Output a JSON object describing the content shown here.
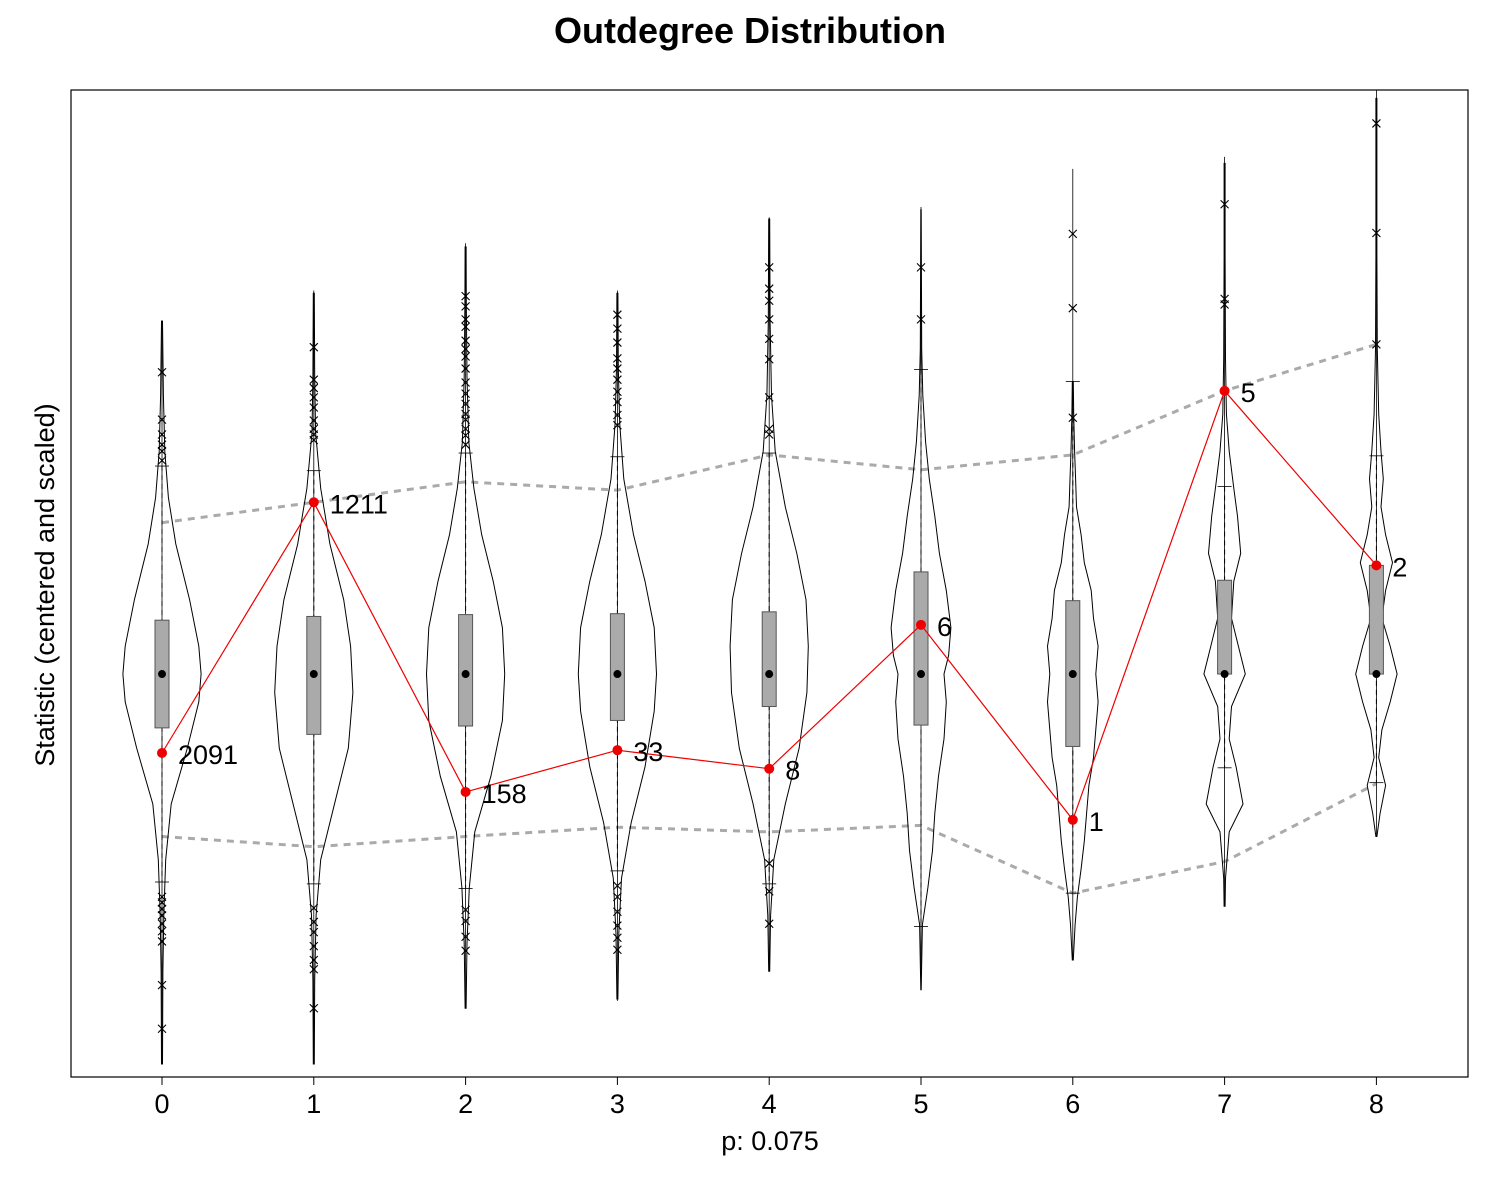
{
  "chart_data": {
    "type": "violin",
    "title": "Outdegree Distribution",
    "xlabel": "p: 0.075",
    "ylabel": "Statistic (centered and scaled)",
    "categories": [
      "0",
      "1",
      "2",
      "3",
      "4",
      "5",
      "6",
      "7",
      "8"
    ],
    "ylim": [
      -4.34,
      6.29
    ],
    "grid": false,
    "legend": "none",
    "colors": {
      "observed": "#ee0000",
      "band": "#aaaaaa",
      "box_fill": "#aaaaaa",
      "outline": "#000000"
    },
    "observed": {
      "values": [
        -0.85,
        1.85,
        -1.27,
        -0.82,
        -1.02,
        0.53,
        -1.57,
        3.05,
        1.17
      ],
      "labels": [
        "2091",
        "1211",
        "158",
        "33",
        "8",
        "6",
        "1",
        "5",
        "2"
      ]
    },
    "band_upper": [
      1.63,
      1.85,
      2.07,
      1.98,
      2.36,
      2.2,
      2.36,
      3.05,
      3.55
    ],
    "band_lower": [
      -1.75,
      -1.86,
      -1.75,
      -1.65,
      -1.7,
      -1.63,
      -2.36,
      -2.02,
      -1.18
    ],
    "violins": [
      {
        "median": 0,
        "q1": -0.58,
        "q3": 0.58,
        "whisker_low": -2.24,
        "whisker_high": 2.24,
        "min": -4.18,
        "max": 3.81,
        "outliers": [
          3.25,
          2.74,
          2.58,
          2.47,
          2.4,
          2.3,
          -2.4,
          -2.46,
          -2.53,
          -2.6,
          -2.69,
          -2.77,
          -2.88,
          -3.35,
          -3.82
        ],
        "density": [
          [
            -4.2,
            0.01
          ],
          [
            -3.2,
            0.02
          ],
          [
            -2.6,
            0.04
          ],
          [
            -2.0,
            0.08
          ],
          [
            -1.4,
            0.2
          ],
          [
            -0.8,
            0.55
          ],
          [
            -0.3,
            0.8
          ],
          [
            0,
            0.85
          ],
          [
            0.3,
            0.8
          ],
          [
            0.8,
            0.6
          ],
          [
            1.4,
            0.3
          ],
          [
            1.9,
            0.14
          ],
          [
            2.4,
            0.06
          ],
          [
            3.0,
            0.03
          ],
          [
            3.8,
            0.01
          ]
        ]
      },
      {
        "median": 0,
        "q1": -0.65,
        "q3": 0.62,
        "whisker_low": -2.26,
        "whisker_high": 2.19,
        "min": -4.18,
        "max": 4.13,
        "outliers": [
          3.52,
          3.17,
          3.08,
          2.98,
          2.87,
          2.73,
          2.64,
          2.58,
          2.52,
          -2.52,
          -2.67,
          -2.78,
          -2.93,
          -3.08,
          -3.18,
          -3.6
        ],
        "density": [
          [
            -4.2,
            0.01
          ],
          [
            -3.3,
            0.02
          ],
          [
            -2.6,
            0.05
          ],
          [
            -2.0,
            0.15
          ],
          [
            -1.4,
            0.45
          ],
          [
            -0.8,
            0.75
          ],
          [
            -0.2,
            0.85
          ],
          [
            0.3,
            0.8
          ],
          [
            0.8,
            0.65
          ],
          [
            1.4,
            0.35
          ],
          [
            2.0,
            0.15
          ],
          [
            2.6,
            0.04
          ],
          [
            3.2,
            0.02
          ],
          [
            4.1,
            0.01
          ]
        ]
      },
      {
        "median": 0,
        "q1": -0.56,
        "q3": 0.64,
        "whisker_low": -2.31,
        "whisker_high": 2.38,
        "min": -3.6,
        "max": 4.64,
        "outliers": [
          4.07,
          3.96,
          3.82,
          3.74,
          3.59,
          3.5,
          3.42,
          3.29,
          3.14,
          3.02,
          2.91,
          2.8,
          2.74,
          2.64,
          2.57,
          2.47,
          -2.54,
          -2.66,
          -2.83,
          -2.98
        ],
        "density": [
          [
            -3.6,
            0.01
          ],
          [
            -2.9,
            0.03
          ],
          [
            -2.3,
            0.08
          ],
          [
            -1.7,
            0.2
          ],
          [
            -1.1,
            0.55
          ],
          [
            -0.5,
            0.8
          ],
          [
            0,
            0.85
          ],
          [
            0.5,
            0.8
          ],
          [
            1.0,
            0.6
          ],
          [
            1.5,
            0.35
          ],
          [
            2.0,
            0.18
          ],
          [
            2.5,
            0.07
          ],
          [
            3.2,
            0.03
          ],
          [
            4.0,
            0.015
          ],
          [
            4.6,
            0.01
          ]
        ]
      },
      {
        "median": 0,
        "q1": -0.5,
        "q3": 0.65,
        "whisker_low": -2.12,
        "whisker_high": 2.34,
        "min": -3.52,
        "max": 4.13,
        "outliers": [
          3.87,
          3.72,
          3.57,
          3.4,
          3.29,
          3.17,
          3.04,
          2.93,
          2.79,
          2.68,
          -2.28,
          -2.4,
          -2.56,
          -2.71,
          -2.84,
          -2.97
        ],
        "density": [
          [
            -3.5,
            0.01
          ],
          [
            -2.8,
            0.03
          ],
          [
            -2.2,
            0.09
          ],
          [
            -1.6,
            0.3
          ],
          [
            -1.0,
            0.6
          ],
          [
            -0.4,
            0.8
          ],
          [
            0,
            0.85
          ],
          [
            0.5,
            0.8
          ],
          [
            1.0,
            0.6
          ],
          [
            1.5,
            0.35
          ],
          [
            2.1,
            0.14
          ],
          [
            2.7,
            0.05
          ],
          [
            3.3,
            0.02
          ],
          [
            4.1,
            0.01
          ]
        ]
      },
      {
        "median": 0,
        "q1": -0.35,
        "q3": 0.67,
        "whisker_low": -2.26,
        "whisker_high": 2.38,
        "min": -3.2,
        "max": 4.92,
        "outliers": [
          4.38,
          4.15,
          4.02,
          3.82,
          3.61,
          3.39,
          2.98,
          2.64,
          2.58,
          -2.04,
          -2.34,
          -2.69
        ],
        "density": [
          [
            -3.2,
            0.01
          ],
          [
            -2.6,
            0.03
          ],
          [
            -2.0,
            0.1
          ],
          [
            -1.4,
            0.35
          ],
          [
            -0.8,
            0.65
          ],
          [
            -0.2,
            0.82
          ],
          [
            0.3,
            0.85
          ],
          [
            0.8,
            0.8
          ],
          [
            1.3,
            0.6
          ],
          [
            1.8,
            0.35
          ],
          [
            2.4,
            0.13
          ],
          [
            3.0,
            0.05
          ],
          [
            3.8,
            0.02
          ],
          [
            4.9,
            0.01
          ]
        ]
      },
      {
        "median": 0,
        "q1": -0.55,
        "q3": 1.1,
        "whisker_low": -2.72,
        "whisker_high": 3.28,
        "min": -3.4,
        "max": 5.03,
        "outliers": [
          4.38,
          3.82
        ],
        "density": [
          [
            -3.4,
            0.005
          ],
          [
            -2.7,
            0.03
          ],
          [
            -2.3,
            0.15
          ],
          [
            -1.9,
            0.25
          ],
          [
            -1.5,
            0.3
          ],
          [
            -1.1,
            0.38
          ],
          [
            -0.7,
            0.5
          ],
          [
            -0.3,
            0.55
          ],
          [
            0,
            0.5
          ],
          [
            0.2,
            0.6
          ],
          [
            0.5,
            0.65
          ],
          [
            0.9,
            0.55
          ],
          [
            1.3,
            0.4
          ],
          [
            1.7,
            0.3
          ],
          [
            2.1,
            0.18
          ],
          [
            2.5,
            0.1
          ],
          [
            3.0,
            0.04
          ],
          [
            3.5,
            0.015
          ],
          [
            5.0,
            0.005
          ]
        ]
      },
      {
        "median": 0,
        "q1": -0.78,
        "q3": 0.79,
        "whisker_low": -2.36,
        "whisker_high": 3.15,
        "min": -3.08,
        "max": 5.44,
        "outliers": [
          4.74,
          3.94,
          2.76
        ],
        "density": [
          [
            -3.08,
            0.01
          ],
          [
            -2.7,
            0.05
          ],
          [
            -2.4,
            0.1
          ],
          [
            -2.1,
            0.18
          ],
          [
            -1.8,
            0.25
          ],
          [
            -1.5,
            0.3
          ],
          [
            -1.2,
            0.35
          ],
          [
            -0.9,
            0.45
          ],
          [
            -0.6,
            0.5
          ],
          [
            -0.3,
            0.55
          ],
          [
            0,
            0.5
          ],
          [
            0.3,
            0.55
          ],
          [
            0.6,
            0.45
          ],
          [
            0.9,
            0.4
          ],
          [
            1.2,
            0.25
          ],
          [
            1.5,
            0.18
          ],
          [
            1.8,
            0.08
          ],
          [
            2.1,
            0.06
          ],
          [
            2.4,
            0.04
          ],
          [
            2.8,
            0.02
          ],
          [
            3.15,
            0.01
          ]
        ]
      },
      {
        "median": 0,
        "q1": 0,
        "q3": 1.01,
        "whisker_low": -1.01,
        "whisker_high": 2.02,
        "min": -2.5,
        "max": 5.57,
        "outliers": [
          5.06,
          4.04,
          3.98
        ],
        "density": [
          [
            -2.5,
            0.01
          ],
          [
            -2.2,
            0.02
          ],
          [
            -1.7,
            0.1
          ],
          [
            -1.4,
            0.4
          ],
          [
            -1.0,
            0.25
          ],
          [
            -0.7,
            0.1
          ],
          [
            -0.35,
            0.15
          ],
          [
            0,
            0.45
          ],
          [
            0.3,
            0.3
          ],
          [
            0.6,
            0.15
          ],
          [
            1.0,
            0.2
          ],
          [
            1.3,
            0.35
          ],
          [
            1.7,
            0.28
          ],
          [
            2.0,
            0.2
          ],
          [
            2.4,
            0.1
          ],
          [
            2.8,
            0.04
          ],
          [
            3.4,
            0.02
          ],
          [
            4.5,
            0.01
          ],
          [
            5.5,
            0.01
          ]
        ]
      },
      {
        "median": 0,
        "q1": 0,
        "q3": 1.17,
        "whisker_low": -1.17,
        "whisker_high": 2.35,
        "min": -1.75,
        "max": 6.29,
        "outliers": [
          5.93,
          4.75,
          3.55
        ],
        "density": [
          [
            -1.75,
            0.01
          ],
          [
            -1.5,
            0.08
          ],
          [
            -1.2,
            0.2
          ],
          [
            -0.9,
            0.05
          ],
          [
            -0.6,
            0.12
          ],
          [
            -0.3,
            0.3
          ],
          [
            0,
            0.45
          ],
          [
            0.3,
            0.3
          ],
          [
            0.6,
            0.12
          ],
          [
            0.9,
            0.2
          ],
          [
            1.2,
            0.35
          ],
          [
            1.5,
            0.2
          ],
          [
            1.8,
            0.1
          ],
          [
            2.1,
            0.15
          ],
          [
            2.4,
            0.1
          ],
          [
            2.8,
            0.05
          ],
          [
            3.5,
            0.02
          ],
          [
            4.5,
            0.01
          ],
          [
            6.2,
            0.01
          ]
        ]
      }
    ]
  }
}
